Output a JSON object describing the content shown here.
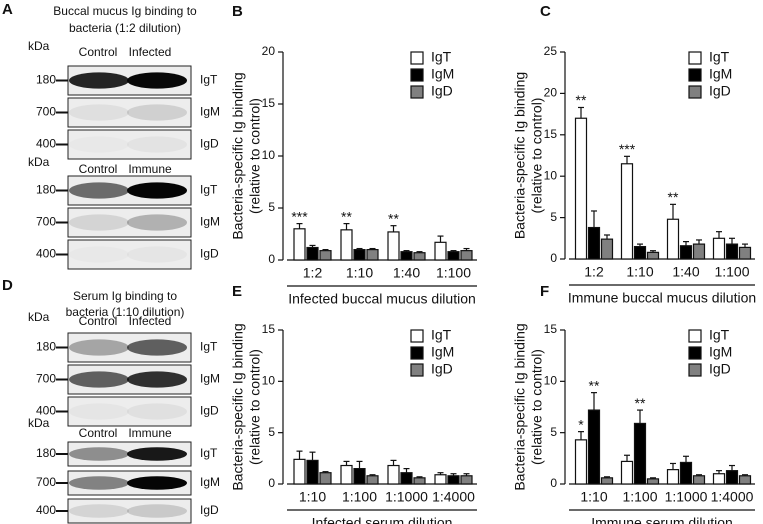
{
  "blots": [
    {
      "panel": "A",
      "title": [
        "Buccal mucus Ig binding to",
        "bacteria  (1:2 dilution)"
      ],
      "groups": [
        {
          "unit": "kDa",
          "columns": [
            "Control",
            "Infected"
          ],
          "rows": [
            {
              "marker": "180",
              "label": "IgT"
            },
            {
              "marker": "700",
              "label": "IgM"
            },
            {
              "marker": "400",
              "label": "IgD"
            }
          ]
        },
        {
          "unit": "kDa",
          "columns": [
            "Control",
            "Immune"
          ],
          "rows": [
            {
              "marker": "180",
              "label": "IgT"
            },
            {
              "marker": "700",
              "label": "IgM"
            },
            {
              "marker": "400",
              "label": "IgD"
            }
          ]
        }
      ]
    },
    {
      "panel": "D",
      "title": [
        "Serum Ig binding to",
        "bacteria (1:10 dilution)"
      ],
      "groups": [
        {
          "unit": "kDa",
          "columns": [
            "Control",
            "Infected"
          ],
          "rows": [
            {
              "marker": "180",
              "label": "IgT"
            },
            {
              "marker": "700",
              "label": "IgM"
            },
            {
              "marker": "400",
              "label": "IgD"
            }
          ]
        },
        {
          "unit": "kDa",
          "columns": [
            "Control",
            "Immune"
          ],
          "rows": [
            {
              "marker": "180",
              "label": "IgT"
            },
            {
              "marker": "700",
              "label": "IgM"
            },
            {
              "marker": "400",
              "label": "IgD"
            }
          ]
        }
      ]
    }
  ],
  "chart_data": [
    {
      "type": "bar",
      "panel": "B",
      "y_label": [
        "Bacteria-specific Ig binding",
        "(relative to control)"
      ],
      "x_label": "Infected buccal mucus dilution",
      "categories": [
        "1:2",
        "1:10",
        "1:40",
        "1:100"
      ],
      "ylim": [
        0,
        20
      ],
      "yticks": [
        0,
        5,
        10,
        15,
        20
      ],
      "legend": "upper right",
      "series": [
        {
          "name": "IgT",
          "color": "#ffffff",
          "values": [
            3.0,
            2.9,
            2.7,
            1.7
          ],
          "errors": [
            0.5,
            0.6,
            0.6,
            0.6
          ],
          "significance": [
            "***",
            "**",
            "**",
            null
          ]
        },
        {
          "name": "IgM",
          "color": "#000000",
          "values": [
            1.2,
            1.0,
            0.8,
            0.8
          ],
          "errors": [
            0.2,
            0.1,
            0.1,
            0.1
          ],
          "significance": [
            null,
            null,
            null,
            null
          ]
        },
        {
          "name": "IgD",
          "color": "#808080",
          "values": [
            0.9,
            1.0,
            0.7,
            0.9
          ],
          "errors": [
            0.1,
            0.1,
            0.1,
            0.2
          ],
          "significance": [
            null,
            null,
            null,
            null
          ]
        }
      ]
    },
    {
      "type": "bar",
      "panel": "C",
      "y_label": [
        "Bacteria-specific Ig binding",
        "(relative to control)"
      ],
      "x_label": "Immune buccal mucus dilution",
      "categories": [
        "1:2",
        "1:10",
        "1:40",
        "1:100"
      ],
      "ylim": [
        0,
        25
      ],
      "yticks": [
        0,
        5,
        10,
        15,
        20,
        25
      ],
      "legend": "upper right",
      "series": [
        {
          "name": "IgT",
          "color": "#ffffff",
          "values": [
            17.0,
            11.5,
            4.8,
            2.5
          ],
          "errors": [
            1.3,
            0.9,
            1.8,
            0.8
          ],
          "significance": [
            "**",
            "***",
            "**",
            null
          ]
        },
        {
          "name": "IgM",
          "color": "#000000",
          "values": [
            3.8,
            1.5,
            1.6,
            1.8
          ],
          "errors": [
            2.0,
            0.3,
            0.5,
            0.7
          ],
          "significance": [
            null,
            null,
            null,
            null
          ]
        },
        {
          "name": "IgD",
          "color": "#808080",
          "values": [
            2.4,
            0.8,
            1.8,
            1.4
          ],
          "errors": [
            0.5,
            0.2,
            0.5,
            0.4
          ],
          "significance": [
            null,
            null,
            null,
            null
          ]
        }
      ]
    },
    {
      "type": "bar",
      "panel": "E",
      "y_label": [
        "Bacteria-specific Ig binding",
        "(relative to control)"
      ],
      "x_label": "Infected serum dilution",
      "categories": [
        "1:10",
        "1:100",
        "1:1000",
        "1:4000"
      ],
      "ylim": [
        0,
        15
      ],
      "yticks": [
        0,
        5,
        10,
        15
      ],
      "legend": "upper right",
      "series": [
        {
          "name": "IgT",
          "color": "#ffffff",
          "values": [
            2.4,
            1.8,
            1.8,
            0.9
          ],
          "errors": [
            0.8,
            0.4,
            0.5,
            0.2
          ],
          "significance": [
            null,
            null,
            null,
            null
          ]
        },
        {
          "name": "IgM",
          "color": "#000000",
          "values": [
            2.3,
            1.5,
            1.1,
            0.8
          ],
          "errors": [
            0.8,
            0.7,
            0.4,
            0.2
          ],
          "significance": [
            null,
            null,
            null,
            null
          ]
        },
        {
          "name": "IgD",
          "color": "#808080",
          "values": [
            1.1,
            0.8,
            0.6,
            0.8
          ],
          "errors": [
            0.1,
            0.1,
            0.1,
            0.2
          ],
          "significance": [
            null,
            null,
            null,
            null
          ]
        }
      ]
    },
    {
      "type": "bar",
      "panel": "F",
      "y_label": [
        "Bacteria-specific Ig binding",
        "(relative to control)"
      ],
      "x_label": "Immune serum dilution",
      "categories": [
        "1:10",
        "1:100",
        "1:1000",
        "1:4000"
      ],
      "ylim": [
        0,
        15
      ],
      "yticks": [
        0,
        5,
        10,
        15
      ],
      "legend": "upper right",
      "series": [
        {
          "name": "IgT",
          "color": "#ffffff",
          "values": [
            4.3,
            2.2,
            1.4,
            1.0
          ],
          "errors": [
            0.8,
            0.6,
            0.6,
            0.3
          ],
          "significance": [
            "*",
            null,
            null,
            null
          ]
        },
        {
          "name": "IgM",
          "color": "#000000",
          "values": [
            7.2,
            5.9,
            2.1,
            1.3
          ],
          "errors": [
            1.7,
            1.3,
            0.6,
            0.5
          ],
          "significance": [
            "**",
            "**",
            null,
            null
          ]
        },
        {
          "name": "IgD",
          "color": "#808080",
          "values": [
            0.6,
            0.5,
            0.8,
            0.8
          ],
          "errors": [
            0.1,
            0.1,
            0.1,
            0.1
          ],
          "significance": [
            null,
            null,
            null,
            null
          ]
        }
      ]
    }
  ]
}
